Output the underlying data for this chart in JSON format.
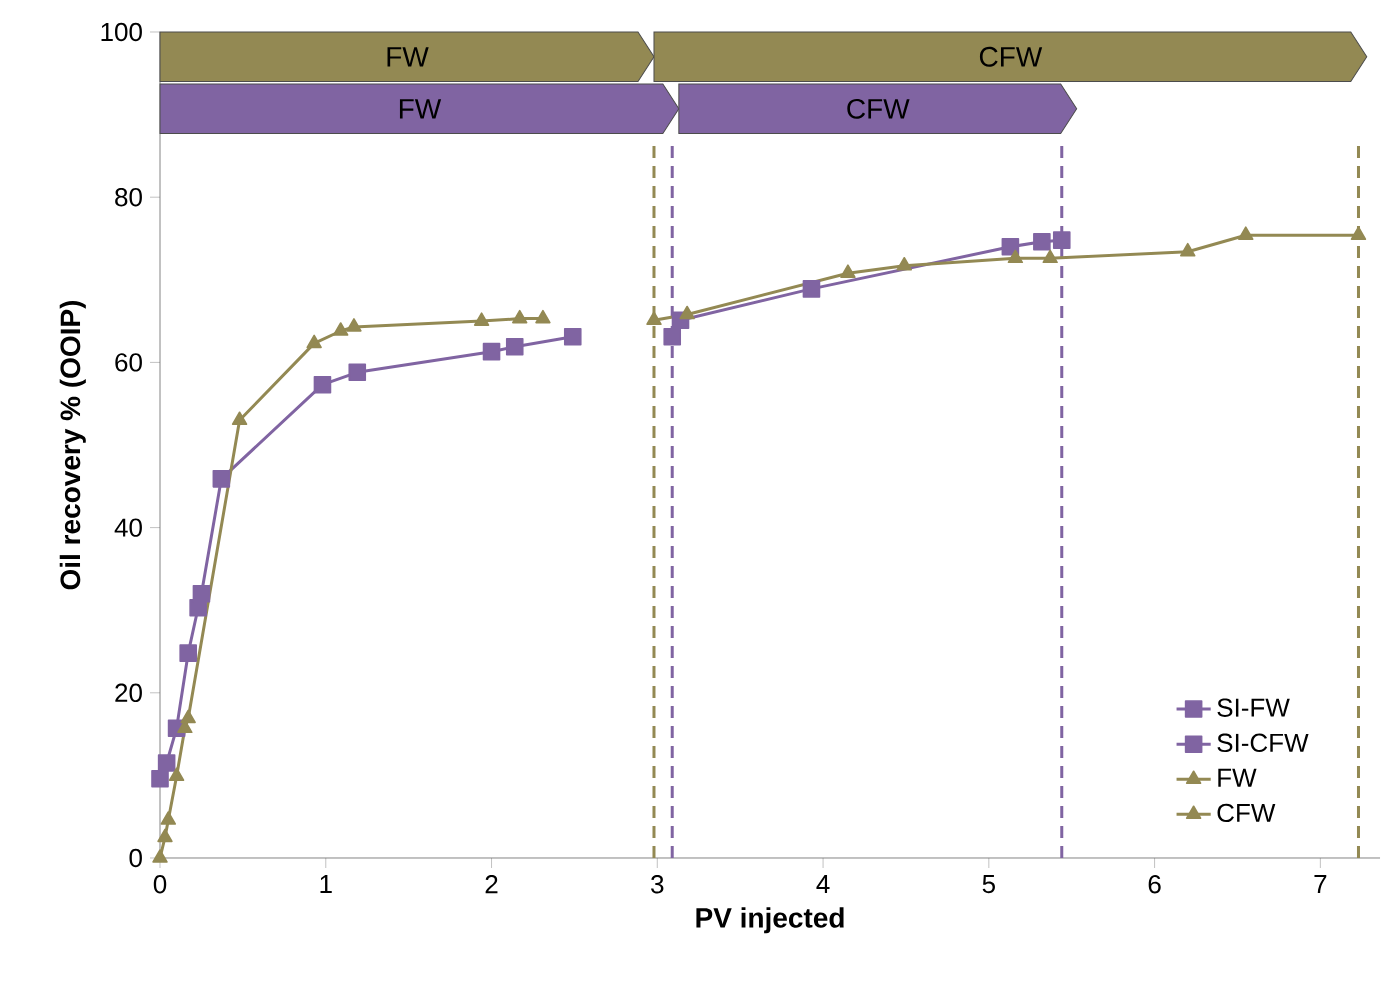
{
  "chart_data": {
    "type": "line",
    "xlabel": "PV injected",
    "ylabel": "Oil recovery  % (OOIP)",
    "xlim": [
      0,
      7.36
    ],
    "ylim": [
      0,
      100
    ],
    "xticks": [
      0,
      1,
      2,
      3,
      4,
      5,
      6,
      7
    ],
    "yticks": [
      0,
      20,
      40,
      60,
      80,
      100
    ],
    "grid": false,
    "legend": "bottom right",
    "line_style": "solid",
    "series": [
      {
        "name": "SI-FW",
        "color": "#8064a2",
        "marker": "square",
        "x": [
          0,
          0.04,
          0.1,
          0.17,
          0.23,
          0.25,
          0.37,
          0.98,
          1.19,
          2.0,
          2.14,
          2.49
        ],
        "values": [
          9.6,
          11.5,
          15.7,
          24.8,
          30.3,
          32,
          45.9,
          57.3,
          58.8,
          61.3,
          61.9,
          63.1
        ]
      },
      {
        "name": "SI-CFW",
        "color": "#8064a2",
        "marker": "square",
        "x": [
          3.09,
          3.14,
          3.93,
          5.13,
          5.32,
          5.44
        ],
        "values": [
          63.1,
          65.1,
          68.9,
          74.0,
          74.6,
          74.8
        ]
      },
      {
        "name": "FW",
        "color": "#938953",
        "marker": "triangle",
        "x": [
          0,
          0.03,
          0.05,
          0.1,
          0.15,
          0.17,
          0.48,
          0.93,
          1.09,
          1.17,
          1.94,
          2.17,
          2.31
        ],
        "values": [
          0,
          2.5,
          4.6,
          9.9,
          15.7,
          16.9,
          53,
          62.3,
          63.8,
          64.3,
          65,
          65.3,
          65.3
        ]
      },
      {
        "name": "CFW",
        "color": "#938953",
        "marker": "triangle",
        "x": [
          2.98,
          3.18,
          4.15,
          4.49,
          5.16,
          5.37,
          6.2,
          6.55,
          7.23
        ],
        "values": [
          65.1,
          65.8,
          70.8,
          71.7,
          72.6,
          72.6,
          73.4,
          75.4,
          75.4
        ]
      }
    ],
    "ref_lines": [
      {
        "axis": "x",
        "value": 2.98,
        "color": "#938953",
        "line_style": "dashed"
      },
      {
        "axis": "x",
        "value": 3.09,
        "color": "#8064a2",
        "line_style": "dashed"
      },
      {
        "axis": "x",
        "value": 5.44,
        "color": "#8064a2",
        "line_style": "dashed"
      },
      {
        "axis": "x",
        "value": 7.23,
        "color": "#938953",
        "line_style": "dashed"
      }
    ],
    "bands": [
      {
        "axis": "x",
        "from": 0,
        "to": 2.98,
        "label": "FW",
        "color": "#938953"
      },
      {
        "axis": "x",
        "from": 2.98,
        "to": 7.28,
        "label": "CFW",
        "color": "#938953"
      },
      {
        "axis": "x",
        "from": 0,
        "to": 3.13,
        "label": "FW",
        "color": "#8064a2"
      },
      {
        "axis": "x",
        "from": 3.13,
        "to": 5.53,
        "label": "CFW",
        "color": "#8064a2"
      }
    ]
  }
}
